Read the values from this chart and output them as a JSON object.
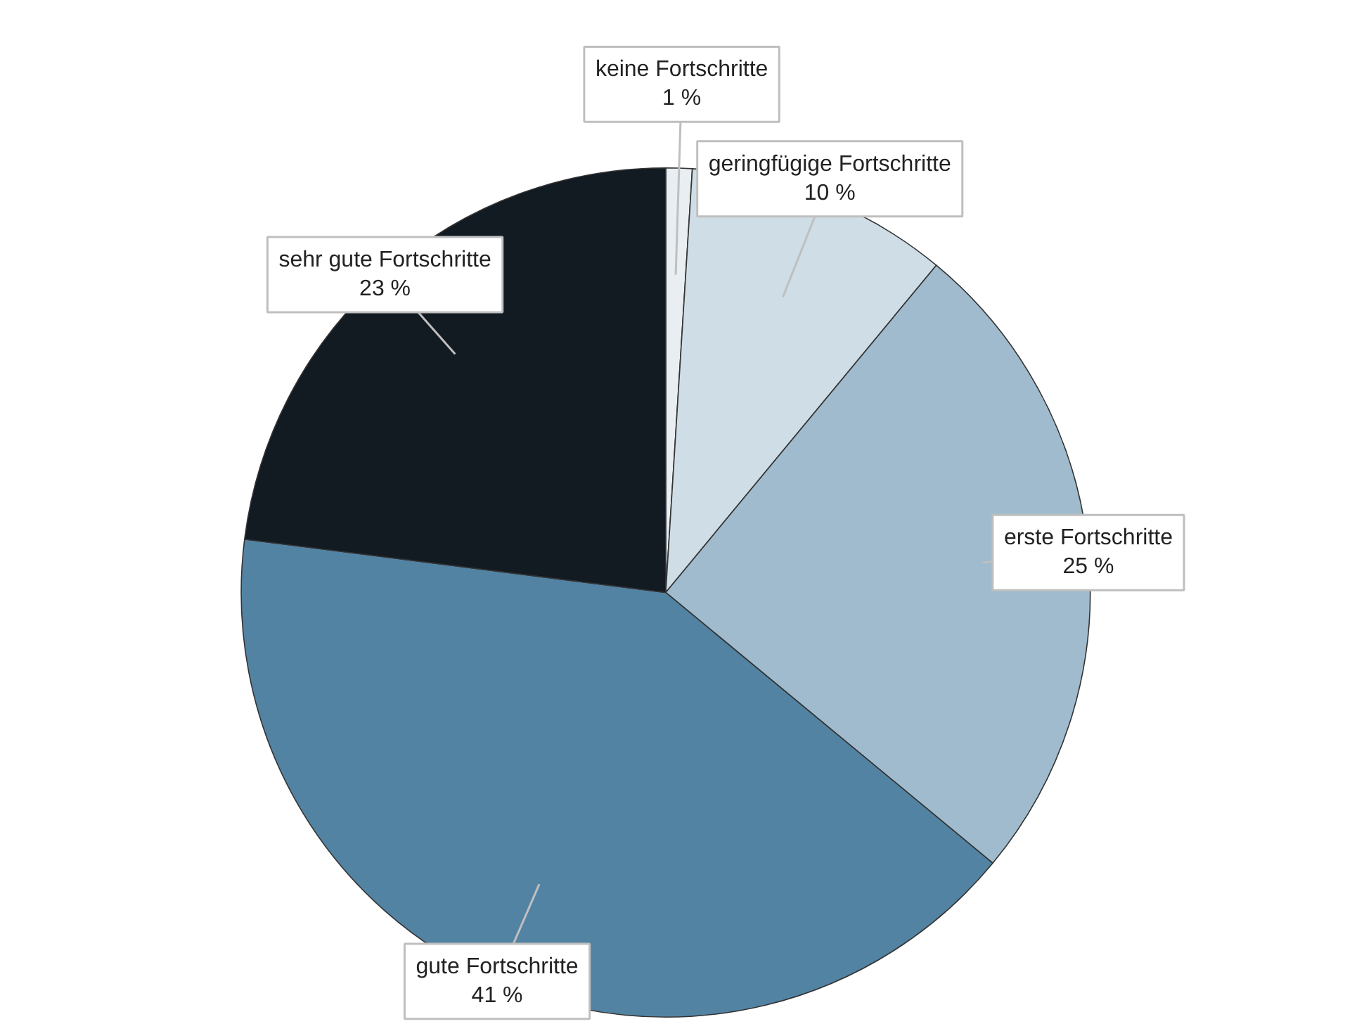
{
  "chart_data": {
    "type": "pie",
    "categories": [
      "keine Fortschritte",
      "geringfügige Fortschritte",
      "erste Fortschritte",
      "gute Fortschritte",
      "sehr gute Fortschritte"
    ],
    "values": [
      1,
      10,
      25,
      41,
      23
    ],
    "value_labels": [
      "1 %",
      "10 %",
      "25 %",
      "41 %",
      "23 %"
    ],
    "colors": [
      "#e8eef2",
      "#cfdde6",
      "#a0bbcd",
      "#5283a3",
      "#121a22"
    ],
    "legend": false
  }
}
